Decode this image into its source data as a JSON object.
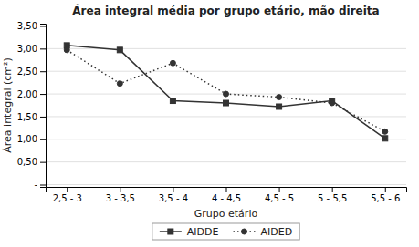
{
  "chart_data": {
    "type": "line",
    "title": "Área integral média por grupo etário, mão direita",
    "xlabel": "Grupo etário",
    "ylabel": "Área integral (cm²)",
    "categories": [
      "2,5 - 3",
      "3 - 3,5",
      "3,5 - 4",
      "4 - 4,5",
      "4,5 - 5",
      "5 - 5,5",
      "5,5 - 6"
    ],
    "series": [
      {
        "name": "AIDDE",
        "color": "#333333",
        "marker": "square",
        "line_style": "solid",
        "values": [
          3.07,
          2.97,
          1.85,
          1.8,
          1.72,
          1.85,
          1.02
        ]
      },
      {
        "name": "AIDED",
        "color": "#333333",
        "marker": "circle",
        "line_style": "dotted",
        "values": [
          2.97,
          2.23,
          2.68,
          2.0,
          1.93,
          1.8,
          1.17
        ]
      }
    ],
    "ylim": [
      -0.05,
      3.55
    ],
    "yticks": [
      {
        "value": 0,
        "label": "-"
      },
      {
        "value": 0.5,
        "label": "0,50"
      },
      {
        "value": 1.0,
        "label": "1,00"
      },
      {
        "value": 1.5,
        "label": "1,50"
      },
      {
        "value": 2.0,
        "label": "2,00"
      },
      {
        "value": 2.5,
        "label": "2,50"
      },
      {
        "value": 3.0,
        "label": "3,00"
      },
      {
        "value": 3.5,
        "label": "3,50"
      }
    ],
    "grid": true,
    "legend": "bottom"
  }
}
